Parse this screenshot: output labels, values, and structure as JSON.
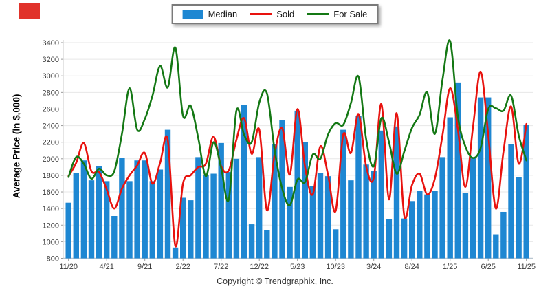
{
  "window": {
    "footer": "Copyright © Trendgraphix, Inc."
  },
  "logo": {
    "color": "#e1322a"
  },
  "y_axis": {
    "title": "Average Price (in $,000)",
    "min": 800,
    "max": 3400,
    "step": 200
  },
  "chart_data": {
    "type": "bar+line",
    "title": "",
    "xlabel": "",
    "ylabel": "Average Price (in $,000)",
    "ylim": [
      800,
      3400
    ],
    "ytick_step": 200,
    "grid": true,
    "legend_position": "top-center",
    "categories": [
      "11/20",
      "12/20",
      "1/21",
      "2/21",
      "3/21",
      "4/21",
      "5/21",
      "6/21",
      "7/21",
      "8/21",
      "9/21",
      "10/21",
      "11/21",
      "12/21",
      "1/22",
      "2/22",
      "3/22",
      "4/22",
      "5/22",
      "6/22",
      "7/22",
      "8/22",
      "9/22",
      "10/22",
      "11/22",
      "12/22",
      "1/23",
      "2/23",
      "3/23",
      "4/23",
      "5/23",
      "6/23",
      "7/23",
      "8/23",
      "9/23",
      "10/23",
      "11/23",
      "12/23",
      "1/24",
      "2/24",
      "3/24",
      "4/24",
      "5/24",
      "6/24",
      "7/24",
      "8/24",
      "9/24",
      "10/24",
      "11/24",
      "12/24",
      "1/25",
      "2/25",
      "3/25",
      "4/25",
      "5/25",
      "6/25",
      "7/25",
      "8/25",
      "9/25",
      "10/25",
      "11/25"
    ],
    "x_tick_indices": [
      0,
      5,
      10,
      15,
      20,
      25,
      30,
      35,
      40,
      45,
      50,
      55,
      60
    ],
    "series": [
      {
        "name": "Median",
        "type": "bar",
        "color": "#1e87d2",
        "values": [
          1470,
          1830,
          1980,
          1740,
          1910,
          1730,
          1310,
          2010,
          1730,
          1980,
          1980,
          1730,
          1870,
          2350,
          930,
          1530,
          1500,
          2020,
          1800,
          1820,
          2190,
          1840,
          2000,
          2650,
          1210,
          2020,
          1140,
          2180,
          2470,
          1660,
          2580,
          2200,
          1670,
          1830,
          1790,
          1150,
          2350,
          1740,
          2520,
          1930,
          1850,
          2340,
          1270,
          2390,
          1280,
          1490,
          1610,
          1570,
          1610,
          2020,
          2500,
          2920,
          1590,
          2020,
          2740,
          2740,
          1090,
          1360,
          2180,
          1780,
          2410
        ]
      },
      {
        "name": "Sold",
        "type": "line",
        "color": "#e8120e",
        "values": [
          1790,
          1950,
          2190,
          1850,
          1840,
          1630,
          1400,
          1640,
          1800,
          1920,
          2070,
          1700,
          1950,
          2230,
          950,
          1700,
          1800,
          1900,
          1940,
          2270,
          1910,
          1860,
          2230,
          2490,
          2060,
          2350,
          1380,
          2050,
          2370,
          1810,
          2600,
          1900,
          1570,
          2150,
          1810,
          1370,
          2290,
          2070,
          2540,
          1910,
          1770,
          2660,
          1510,
          2550,
          1310,
          1680,
          1820,
          1570,
          1760,
          2280,
          2850,
          2370,
          1660,
          2380,
          3050,
          2290,
          1400,
          2090,
          2630,
          1940,
          2420
        ]
      },
      {
        "name": "For Sale",
        "type": "line",
        "color": "#147814",
        "values": [
          1780,
          2020,
          1940,
          1760,
          1880,
          1800,
          1850,
          2300,
          2850,
          2350,
          2480,
          2760,
          3120,
          2860,
          3340,
          2520,
          2640,
          2250,
          1790,
          2200,
          1890,
          1510,
          2580,
          2290,
          2200,
          2680,
          2790,
          2110,
          1640,
          1440,
          1750,
          1720,
          2050,
          2000,
          2290,
          2430,
          2410,
          2670,
          2990,
          2240,
          1910,
          2490,
          2200,
          1820,
          2090,
          2370,
          2530,
          2800,
          2300,
          2950,
          3420,
          2520,
          2150,
          2010,
          2130,
          2600,
          2610,
          2580,
          2760,
          2280,
          1980
        ]
      }
    ]
  }
}
